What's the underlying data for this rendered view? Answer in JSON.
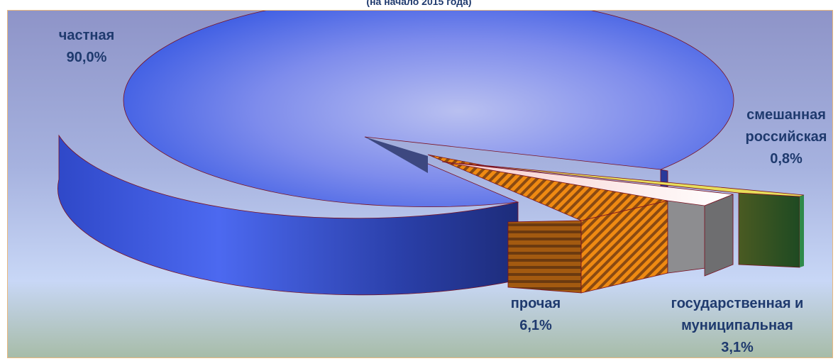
{
  "chart_data": {
    "type": "pie",
    "title": "",
    "subtitle": "(на начало 2015 года)",
    "slices": [
      {
        "label_lines": [
          "частная"
        ],
        "percent_label": "90,0%",
        "value": 90.0,
        "color": "#3d5be8"
      },
      {
        "label_lines": [
          "смешанная",
          "российская"
        ],
        "percent_label": "0,8%",
        "value": 0.8,
        "color": "#2f6b3a"
      },
      {
        "label_lines": [
          "государственная и",
          "муниципальная"
        ],
        "percent_label": "3,1%",
        "value": 3.1,
        "color": "#f4eaea"
      },
      {
        "label_lines": [
          "прочая"
        ],
        "percent_label": "6,1%",
        "value": 6.1,
        "color": "#e07a10"
      }
    ]
  }
}
